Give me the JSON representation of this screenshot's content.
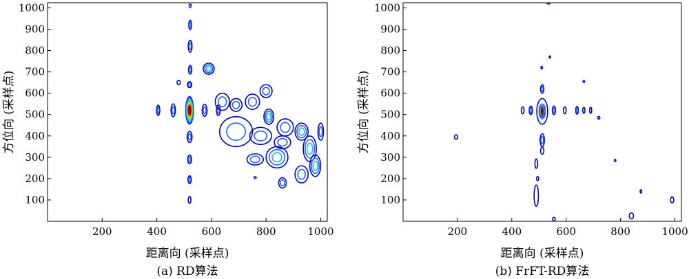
{
  "chart_data": [
    {
      "type": "contour",
      "caption": "(a)  RD算法",
      "xlabel": "距离向 (采样点)",
      "ylabel": "方位向 (采样点)",
      "xlim": [
        0,
        1024
      ],
      "ylim": [
        0,
        1024
      ],
      "xticks": [
        "200",
        "400",
        "600",
        "800",
        "1000"
      ],
      "yticks": [
        "100",
        "200",
        "300",
        "400",
        "500",
        "600",
        "700",
        "800",
        "900",
        "1000"
      ],
      "grid": false,
      "colormap": [
        "#0000c8",
        "#1e64ff",
        "#00c8ff",
        "#00e68c",
        "#c8e600",
        "#ff8c00",
        "#e60000",
        "#8b0000"
      ],
      "peak": {
        "x": 520,
        "y": 520
      },
      "contours": [
        {
          "cx": 520,
          "cy": 520,
          "rx": 14,
          "ry": 64,
          "levels": 8
        },
        {
          "cx": 520,
          "cy": 640,
          "rx": 8,
          "ry": 14,
          "levels": 2
        },
        {
          "cx": 520,
          "cy": 395,
          "rx": 9,
          "ry": 26,
          "levels": 2
        },
        {
          "cx": 520,
          "cy": 290,
          "rx": 7,
          "ry": 20,
          "levels": 2
        },
        {
          "cx": 520,
          "cy": 195,
          "rx": 6,
          "ry": 18,
          "levels": 2
        },
        {
          "cx": 520,
          "cy": 100,
          "rx": 5,
          "ry": 16,
          "levels": 1
        },
        {
          "cx": 522,
          "cy": 710,
          "rx": 6,
          "ry": 20,
          "levels": 2
        },
        {
          "cx": 522,
          "cy": 820,
          "rx": 7,
          "ry": 28,
          "levels": 2
        },
        {
          "cx": 522,
          "cy": 920,
          "rx": 5,
          "ry": 22,
          "levels": 2
        },
        {
          "cx": 522,
          "cy": 1010,
          "rx": 4,
          "ry": 8,
          "levels": 1
        },
        {
          "cx": 460,
          "cy": 520,
          "rx": 8,
          "ry": 30,
          "levels": 2
        },
        {
          "cx": 405,
          "cy": 520,
          "rx": 6,
          "ry": 24,
          "levels": 2
        },
        {
          "cx": 575,
          "cy": 520,
          "rx": 9,
          "ry": 28,
          "levels": 2
        },
        {
          "cx": 625,
          "cy": 520,
          "rx": 7,
          "ry": 24,
          "levels": 2
        },
        {
          "cx": 590,
          "cy": 715,
          "rx": 20,
          "ry": 26,
          "levels": 3
        },
        {
          "cx": 480,
          "cy": 650,
          "rx": 6,
          "ry": 10,
          "levels": 1
        },
        {
          "cx": 640,
          "cy": 560,
          "rx": 26,
          "ry": 40,
          "levels": 2
        },
        {
          "cx": 690,
          "cy": 545,
          "rx": 22,
          "ry": 30,
          "levels": 2
        },
        {
          "cx": 750,
          "cy": 560,
          "rx": 26,
          "ry": 36,
          "levels": 2
        },
        {
          "cx": 800,
          "cy": 610,
          "rx": 22,
          "ry": 30,
          "levels": 2
        },
        {
          "cx": 810,
          "cy": 490,
          "rx": 18,
          "ry": 36,
          "levels": 3
        },
        {
          "cx": 690,
          "cy": 420,
          "rx": 60,
          "ry": 70,
          "levels": 2
        },
        {
          "cx": 780,
          "cy": 400,
          "rx": 40,
          "ry": 40,
          "levels": 2
        },
        {
          "cx": 870,
          "cy": 440,
          "rx": 30,
          "ry": 40,
          "levels": 2
        },
        {
          "cx": 860,
          "cy": 370,
          "rx": 30,
          "ry": 30,
          "levels": 2
        },
        {
          "cx": 840,
          "cy": 300,
          "rx": 40,
          "ry": 50,
          "levels": 3
        },
        {
          "cx": 760,
          "cy": 290,
          "rx": 30,
          "ry": 26,
          "levels": 2
        },
        {
          "cx": 930,
          "cy": 420,
          "rx": 24,
          "ry": 40,
          "levels": 3
        },
        {
          "cx": 960,
          "cy": 340,
          "rx": 24,
          "ry": 60,
          "levels": 3
        },
        {
          "cx": 980,
          "cy": 260,
          "rx": 20,
          "ry": 50,
          "levels": 3
        },
        {
          "cx": 930,
          "cy": 220,
          "rx": 24,
          "ry": 40,
          "levels": 2
        },
        {
          "cx": 860,
          "cy": 180,
          "rx": 14,
          "ry": 24,
          "levels": 2
        },
        {
          "cx": 760,
          "cy": 205,
          "rx": 4,
          "ry": 4,
          "levels": 1
        },
        {
          "cx": 1000,
          "cy": 420,
          "rx": 10,
          "ry": 40,
          "levels": 2
        }
      ]
    },
    {
      "type": "contour",
      "caption": "(b) FrFT-RD算法",
      "xlabel": "距离向 (采样点)",
      "ylabel": "方位向 (采样点)",
      "xlim": [
        0,
        1024
      ],
      "ylim": [
        0,
        1024
      ],
      "xticks": [
        "200",
        "400",
        "600",
        "800",
        "1000"
      ],
      "yticks": [
        "100",
        "200",
        "300",
        "400",
        "500",
        "600",
        "700",
        "800",
        "900",
        "1000"
      ],
      "grid": false,
      "colormap": [
        "#0000c8",
        "#1e64ff",
        "#00c8ff",
        "#00e68c",
        "#c8e600",
        "#ff8c00",
        "#e60000",
        "#8b0000"
      ],
      "peak": {
        "x": 512,
        "y": 515
      },
      "contours": [
        {
          "cx": 512,
          "cy": 515,
          "rx": 8,
          "ry": 26,
          "levels": 8
        },
        {
          "cx": 512,
          "cy": 515,
          "rx": 20,
          "ry": 60,
          "levels": 2
        },
        {
          "cx": 470,
          "cy": 520,
          "rx": 6,
          "ry": 20,
          "levels": 2
        },
        {
          "cx": 440,
          "cy": 520,
          "rx": 5,
          "ry": 16,
          "levels": 1
        },
        {
          "cx": 555,
          "cy": 520,
          "rx": 6,
          "ry": 20,
          "levels": 2
        },
        {
          "cx": 595,
          "cy": 520,
          "rx": 5,
          "ry": 16,
          "levels": 1
        },
        {
          "cx": 640,
          "cy": 520,
          "rx": 5,
          "ry": 18,
          "levels": 2
        },
        {
          "cx": 665,
          "cy": 520,
          "rx": 4,
          "ry": 14,
          "levels": 1
        },
        {
          "cx": 690,
          "cy": 520,
          "rx": 4,
          "ry": 14,
          "levels": 1
        },
        {
          "cx": 512,
          "cy": 380,
          "rx": 8,
          "ry": 30,
          "levels": 2
        },
        {
          "cx": 512,
          "cy": 330,
          "rx": 6,
          "ry": 16,
          "levels": 1
        },
        {
          "cx": 512,
          "cy": 620,
          "rx": 6,
          "ry": 20,
          "levels": 2
        },
        {
          "cx": 510,
          "cy": 720,
          "rx": 3,
          "ry": 6,
          "levels": 1
        },
        {
          "cx": 540,
          "cy": 770,
          "rx": 3,
          "ry": 5,
          "levels": 1
        },
        {
          "cx": 490,
          "cy": 270,
          "rx": 5,
          "ry": 22,
          "levels": 1
        },
        {
          "cx": 495,
          "cy": 200,
          "rx": 4,
          "ry": 10,
          "levels": 1
        },
        {
          "cx": 490,
          "cy": 120,
          "rx": 8,
          "ry": 50,
          "levels": 1
        },
        {
          "cx": 720,
          "cy": 485,
          "rx": 4,
          "ry": 6,
          "levels": 1
        },
        {
          "cx": 665,
          "cy": 655,
          "rx": 3,
          "ry": 5,
          "levels": 1
        },
        {
          "cx": 195,
          "cy": 395,
          "rx": 6,
          "ry": 10,
          "levels": 1
        },
        {
          "cx": 780,
          "cy": 285,
          "rx": 3,
          "ry": 5,
          "levels": 1
        },
        {
          "cx": 875,
          "cy": 140,
          "rx": 3,
          "ry": 8,
          "levels": 1
        },
        {
          "cx": 840,
          "cy": 25,
          "rx": 8,
          "ry": 14,
          "levels": 1
        },
        {
          "cx": 990,
          "cy": 100,
          "rx": 6,
          "ry": 14,
          "levels": 1
        },
        {
          "cx": 555,
          "cy": 10,
          "rx": 5,
          "ry": 8,
          "levels": 1
        },
        {
          "cx": 535,
          "cy": 1022,
          "rx": 6,
          "ry": 4,
          "levels": 1
        }
      ]
    }
  ]
}
